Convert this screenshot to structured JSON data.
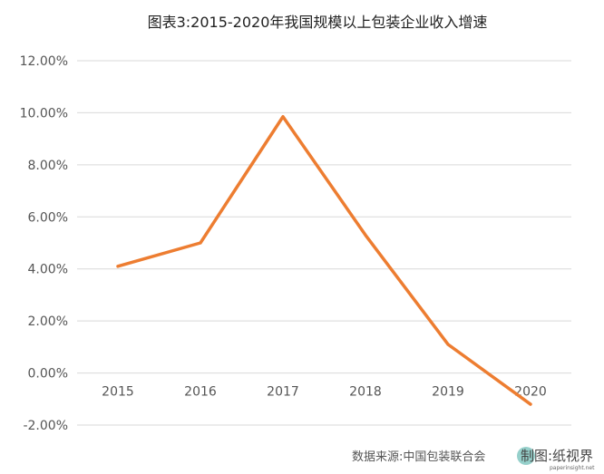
{
  "chart_data": {
    "type": "line",
    "title": "图表3:2015-2020年我国规模以上包装企业收入增速",
    "categories": [
      "2015",
      "2016",
      "2017",
      "2018",
      "2019",
      "2020"
    ],
    "series": [
      {
        "values": [
          4.1,
          5.0,
          9.85,
          5.3,
          1.1,
          -1.2
        ]
      }
    ],
    "ylim": [
      -2,
      12
    ],
    "yticks": [
      "-2.00%",
      "0.00%",
      "2.00%",
      "4.00%",
      "6.00%",
      "8.00%",
      "10.00%",
      "12.00%"
    ],
    "ytick_values": [
      -2,
      0,
      2,
      4,
      6,
      8,
      10,
      12
    ],
    "xlabel": "",
    "ylabel": "",
    "grid": true,
    "legend": "none",
    "line_color": "#ED7D31",
    "grid_color": "#D9D9D9"
  },
  "source_text": "数据来源:中国包装联合会",
  "watermark": {
    "text": "制图:纸视界",
    "brand": "纸视界",
    "url": "paperinsight.net"
  }
}
